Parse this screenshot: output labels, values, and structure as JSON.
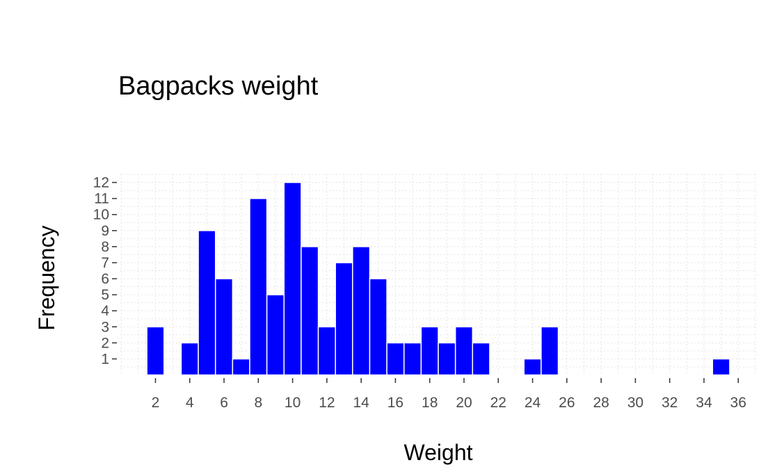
{
  "chart_data": {
    "type": "bar",
    "title": "Bagpacks weight",
    "xlabel": "Weight",
    "ylabel": "Frequency",
    "x": [
      2,
      4,
      5,
      6,
      7,
      8,
      9,
      10,
      11,
      12,
      13,
      14,
      15,
      16,
      17,
      18,
      19,
      20,
      21,
      24,
      25,
      35
    ],
    "values": [
      3,
      2,
      9,
      6,
      1,
      11,
      5,
      12,
      8,
      3,
      7,
      8,
      6,
      2,
      2,
      3,
      2,
      3,
      2,
      1,
      3,
      1
    ],
    "xticks": [
      "2",
      "4",
      "6",
      "8",
      "10",
      "12",
      "14",
      "16",
      "18",
      "20",
      "22",
      "24",
      "26",
      "28",
      "30",
      "32",
      "34",
      "36"
    ],
    "yticks": [
      "1",
      "2",
      "3",
      "4",
      "5",
      "6",
      "7",
      "8",
      "9",
      "10",
      "11",
      "12"
    ],
    "xlim": [
      0.5,
      37
    ],
    "ylim": [
      0,
      12.5
    ],
    "grid": true,
    "bar_color": "#0000ff",
    "background": "#ffffff"
  }
}
